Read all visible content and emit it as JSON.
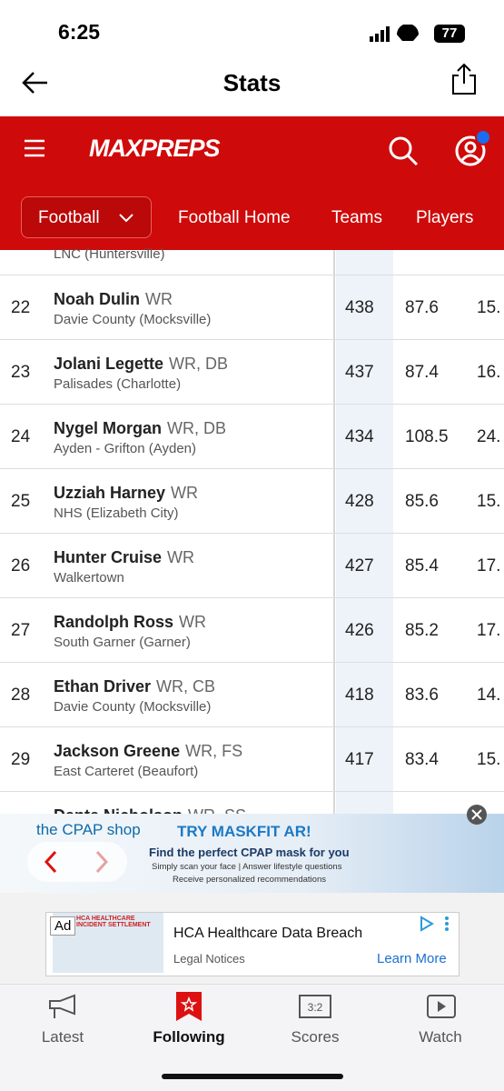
{
  "status_bar": {
    "time": "6:25",
    "battery": "77"
  },
  "nav": {
    "title": "Stats"
  },
  "header": {
    "logo": "MAXPREPS",
    "tabs": [
      "Football",
      "Football Home",
      "Teams",
      "Players"
    ]
  },
  "table": {
    "partial_top": {
      "school": "LNC (Huntersville)"
    },
    "rows": [
      {
        "rank": "22",
        "name": "Noah Dulin",
        "position": "WR",
        "school": "Davie County (Mocksville)",
        "values": [
          "438",
          "87.6",
          "15."
        ]
      },
      {
        "rank": "23",
        "name": "Jolani Legette",
        "position": "WR, DB",
        "school": "Palisades (Charlotte)",
        "values": [
          "437",
          "87.4",
          "16."
        ]
      },
      {
        "rank": "24",
        "name": "Nygel Morgan",
        "position": "WR, DB",
        "school": "Ayden - Grifton (Ayden)",
        "values": [
          "434",
          "108.5",
          "24."
        ]
      },
      {
        "rank": "25",
        "name": "Uzziah Harney",
        "position": "WR",
        "school": "NHS (Elizabeth City)",
        "values": [
          "428",
          "85.6",
          "15."
        ]
      },
      {
        "rank": "26",
        "name": "Hunter Cruise",
        "position": "WR",
        "school": "Walkertown",
        "values": [
          "427",
          "85.4",
          "17."
        ]
      },
      {
        "rank": "27",
        "name": "Randolph Ross",
        "position": "WR",
        "school": "South Garner (Garner)",
        "values": [
          "426",
          "85.2",
          "17."
        ]
      },
      {
        "rank": "28",
        "name": "Ethan Driver",
        "position": "WR, CB",
        "school": "Davie County (Mocksville)",
        "values": [
          "418",
          "83.6",
          "14."
        ]
      },
      {
        "rank": "29",
        "name": "Jackson Greene",
        "position": "WR, FS",
        "school": "East Carteret (Beaufort)",
        "values": [
          "417",
          "83.4",
          "15."
        ]
      }
    ],
    "partial_bottom": {
      "name": "Dante Nicholson",
      "position": "WR, SS"
    }
  },
  "ad_banner": {
    "brand": "the CPAP shop",
    "headline": "TRY MASKFIT AR!",
    "subhead": "Find the perfect CPAP mask for you",
    "line1": "Simply scan your face | Answer lifestyle questions",
    "line2": "Receive personalized recommendations"
  },
  "ad_card": {
    "badge": "Ad",
    "image_text": "HCA HEALTHCARE INCIDENT SETTLEMENT",
    "title": "HCA Healthcare Data Breach",
    "source": "Legal Notices",
    "cta": "Learn More"
  },
  "tab_bar": [
    "Latest",
    "Following",
    "Scores",
    "Watch"
  ]
}
